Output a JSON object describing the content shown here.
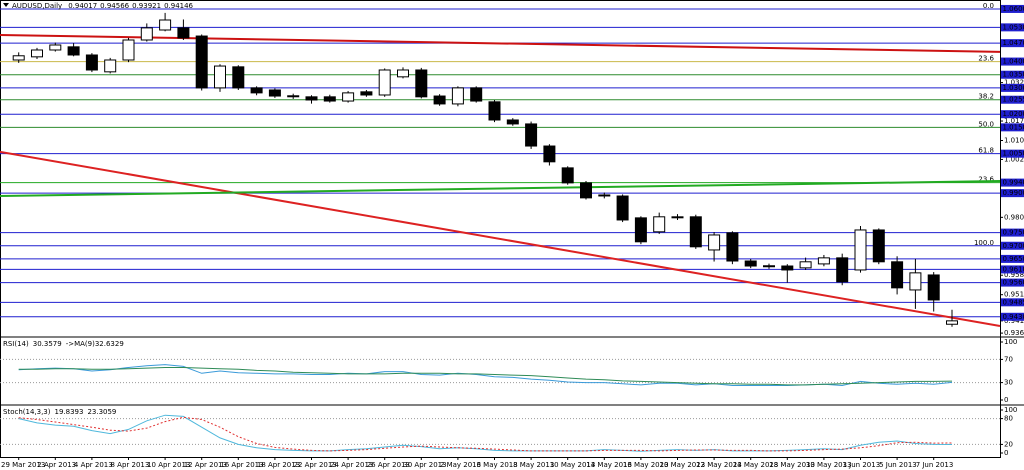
{
  "chart_data": [
    {
      "type": "candlestick",
      "title": "AUDUSD,Daily",
      "categories": [
        "29 Mar 2013",
        null,
        "2 Apr 2013",
        null,
        "4 Apr 2013",
        null,
        "8 Apr 2013",
        null,
        "10 Apr 2013",
        null,
        "12 Apr 2013",
        null,
        "16 Apr 2013",
        null,
        "18 Apr 2013",
        null,
        "22 Apr 2013",
        null,
        "24 Apr 2013",
        null,
        "26 Apr 2013",
        null,
        "30 Apr 2013",
        null,
        "2 May 2013",
        null,
        "6 May 2013",
        null,
        "8 May 2013",
        null,
        "10 May 2013",
        null,
        "14 May 2013",
        null,
        "16 May 2013",
        null,
        "20 May 2013",
        null,
        "22 May 2013",
        null,
        "24 May 2013",
        null,
        "28 May 2013",
        null,
        "30 May 2013",
        null,
        "3 Jun 2013",
        null,
        "5 Jun 2013",
        null,
        "7 Jun 2013",
        null
      ],
      "open": [
        1.0406,
        1.0418,
        1.0444,
        1.0456,
        1.0425,
        1.0361,
        1.0406,
        1.0482,
        1.052,
        1.0528,
        1.0497,
        1.03,
        1.038,
        1.03,
        1.0292,
        1.027,
        1.0266,
        1.0266,
        1.025,
        1.0285,
        1.0273,
        1.0342,
        1.0368,
        1.0269,
        1.0239,
        1.03,
        1.0247,
        1.0178,
        1.0163,
        1.0079,
        0.9996,
        0.9939,
        0.9893,
        0.9889,
        0.9806,
        0.9753,
        0.981,
        0.981,
        0.9684,
        0.9749,
        0.9642,
        0.9624,
        0.9623,
        0.9616,
        0.9631,
        0.9654,
        0.9608,
        0.976,
        0.9639,
        0.9532,
        0.9589,
        0.94017
      ],
      "high": [
        1.0435,
        1.0452,
        1.0472,
        1.047,
        1.0432,
        1.0414,
        1.049,
        1.0545,
        1.0585,
        1.056,
        1.0503,
        1.039,
        1.0386,
        1.0306,
        1.0298,
        1.0278,
        1.0272,
        1.0274,
        1.0288,
        1.0292,
        1.0374,
        1.0378,
        1.0376,
        1.0276,
        1.0306,
        1.0306,
        1.0254,
        1.0185,
        1.0172,
        1.0086,
        1.0002,
        0.9946,
        0.9902,
        0.9895,
        0.9812,
        0.9826,
        0.982,
        0.9818,
        0.9752,
        0.9755,
        0.965,
        0.9632,
        0.963,
        0.9655,
        0.9665,
        0.967,
        0.9775,
        0.9766,
        0.966,
        0.965,
        0.96,
        0.94566
      ],
      "low": [
        1.0395,
        1.041,
        1.0438,
        1.042,
        1.036,
        1.0355,
        1.0398,
        1.0476,
        1.0515,
        1.0482,
        1.029,
        1.0285,
        1.0292,
        1.0272,
        1.0262,
        1.0258,
        1.024,
        1.0244,
        1.0244,
        1.0266,
        1.0266,
        1.0336,
        1.026,
        1.0232,
        1.023,
        1.0244,
        1.017,
        1.0156,
        1.0068,
        1.0005,
        0.9932,
        0.9876,
        0.988,
        0.979,
        0.9706,
        0.9745,
        0.9798,
        0.9688,
        0.964,
        0.963,
        0.9615,
        0.9612,
        0.956,
        0.9608,
        0.9622,
        0.955,
        0.9598,
        0.963,
        0.9515,
        0.946,
        0.945,
        0.93921
      ],
      "close": [
        1.0422,
        1.0444,
        1.0463,
        1.0425,
        1.0368,
        1.0406,
        1.0482,
        1.0528,
        1.0558,
        1.049,
        1.03,
        1.0383,
        1.03,
        1.0281,
        1.0269,
        1.0268,
        1.0254,
        1.025,
        1.0281,
        1.0273,
        1.0368,
        1.0368,
        1.0266,
        1.0239,
        1.03,
        1.025,
        1.0178,
        1.0163,
        1.0079,
        1.0019,
        0.9939,
        0.9882,
        0.9891,
        0.9798,
        0.9715,
        0.981,
        0.9808,
        0.9696,
        0.9741,
        0.9642,
        0.9623,
        0.9622,
        0.9608,
        0.9639,
        0.9654,
        0.9563,
        0.976,
        0.9639,
        0.954,
        0.9597,
        0.9494,
        0.94146
      ],
      "up_color": "#ffffff",
      "down_color": "#000000",
      "ylim": [
        0.9357,
        1.0634
      ],
      "yticks": [
        {
          "value": 1.032,
          "label": "1.03200"
        },
        {
          "value": 1.0174,
          "label": "1.01740"
        },
        {
          "value": 1.01,
          "label": "1.01000"
        },
        {
          "value": 1.0028,
          "label": "1.00280"
        },
        {
          "value": 0.9808,
          "label": "0.98080"
        },
        {
          "value": 0.9588,
          "label": "0.95880"
        },
        {
          "value": 0.9514,
          "label": "0.95140"
        },
        0.94146,
        {
          "value": 0.9368,
          "label": "0.93680"
        }
      ],
      "levels": [
        {
          "value": 1.06,
          "label": "1.06000",
          "color": "#1f1fcf",
          "note": "0.0"
        },
        {
          "value": 1.053,
          "label": "1.05300",
          "color": "#1f1fcf"
        },
        {
          "value": 1.047,
          "label": "1.04700",
          "color": "#1f1fcf"
        },
        {
          "value": 1.04,
          "label": "1.04000",
          "color": "#c9b84a",
          "note": "23.6"
        },
        {
          "value": 1.035,
          "label": "1.03500",
          "color": "#2e8b2e"
        },
        {
          "value": 1.03,
          "label": "1.03000",
          "color": "#1f1fcf"
        },
        {
          "value": 1.0255,
          "label": "1.02550",
          "color": "#2e8b2e",
          "note": "38.2"
        },
        {
          "value": 1.02,
          "label": "1.02000",
          "color": "#1f1fcf"
        },
        {
          "value": 1.015,
          "label": "1.01500",
          "color": "#2e8b2e",
          "note": "50.0"
        },
        {
          "value": 1.005,
          "label": "1.00500",
          "color": "#1f1fcf",
          "note": "61.8"
        },
        {
          "value": 0.994,
          "label": "0.99400",
          "color": "#22aa22",
          "note": "23.6"
        },
        {
          "value": 0.99,
          "label": "0.99000",
          "color": "#1f1fcf"
        },
        {
          "value": 0.975,
          "label": "0.97500",
          "color": "#1f1fcf"
        },
        {
          "value": 0.97,
          "label": "0.97000",
          "color": "#1f1fcf",
          "note": "100.0"
        },
        {
          "value": 0.965,
          "label": "0.96500",
          "color": "#1f1fcf"
        },
        {
          "value": 0.961,
          "label": "0.96100",
          "color": "#1f1fcf"
        },
        {
          "value": 0.956,
          "label": "0.95600",
          "color": "#1f1fcf"
        },
        {
          "value": 0.9485,
          "label": "0.94850",
          "color": "#1f1fcf"
        },
        {
          "value": 0.943,
          "label": "0.94300",
          "color": "#1f1fcf"
        }
      ],
      "trendlines": [
        {
          "start": 1.0501,
          "end": 1.0437,
          "color": "#cc1111"
        },
        {
          "start": 1.0057,
          "end": 0.9395,
          "color": "#dd2222"
        },
        {
          "start": 0.9889,
          "end": 0.9946,
          "color": "#22aa22"
        }
      ]
    },
    {
      "type": "line",
      "title": "RSI(14)",
      "series": [
        {
          "color": "#3a9ad9",
          "values": [
            52,
            54,
            55,
            54,
            50,
            52,
            56,
            59,
            61,
            58,
            46,
            50,
            47,
            46,
            45,
            45,
            44,
            44,
            46,
            45,
            49,
            49,
            44,
            43,
            46,
            44,
            40,
            39,
            36,
            34,
            31,
            30,
            30,
            28,
            26,
            29,
            29,
            26,
            28,
            25,
            25,
            25,
            25,
            26,
            27,
            25,
            32,
            29,
            27,
            29,
            27,
            30.3579
          ]
        },
        {
          "name": "->MA(9)",
          "color": "#2e8b57",
          "values": [
            53,
            53,
            54,
            54,
            53,
            53,
            54,
            55,
            56,
            56,
            55,
            54,
            53,
            51,
            50,
            48,
            47,
            46,
            45,
            45,
            45,
            46,
            46,
            46,
            45,
            45,
            44,
            43,
            42,
            40,
            38,
            36,
            35,
            33,
            32,
            31,
            30,
            29,
            28,
            28,
            27,
            27,
            26,
            26,
            27,
            28,
            29,
            30,
            31,
            32,
            32,
            32.6329
          ]
        }
      ],
      "ylim": [
        0,
        100
      ],
      "yticks": [
        100,
        70,
        30,
        0
      ]
    },
    {
      "type": "line",
      "title": "Stoch(14,3,3)",
      "series": [
        {
          "color": "#4fb8dc",
          "values": [
            80,
            70,
            65,
            62,
            52,
            45,
            55,
            75,
            88,
            85,
            60,
            35,
            20,
            12,
            8,
            6,
            5,
            5,
            8,
            10,
            14,
            18,
            15,
            10,
            12,
            10,
            6,
            5,
            5,
            5,
            5,
            5,
            8,
            6,
            4,
            6,
            8,
            6,
            8,
            5,
            5,
            5,
            6,
            8,
            10,
            8,
            18,
            25,
            28,
            22,
            20,
            19.8393
          ]
        },
        {
          "color": "#e03030",
          "dashed": true,
          "values": [
            82,
            78,
            72,
            66,
            60,
            53,
            51,
            58,
            73,
            83,
            78,
            60,
            38,
            22,
            13,
            9,
            6,
            5,
            6,
            8,
            11,
            14,
            16,
            14,
            12,
            11,
            9,
            7,
            5,
            5,
            5,
            5,
            6,
            6,
            6,
            5,
            6,
            7,
            7,
            6,
            6,
            5,
            5,
            6,
            8,
            9,
            12,
            17,
            24,
            25,
            23,
            23.3059
          ]
        }
      ],
      "ylim": [
        0,
        100
      ],
      "yticks": [
        100,
        80,
        20,
        0
      ]
    }
  ]
}
